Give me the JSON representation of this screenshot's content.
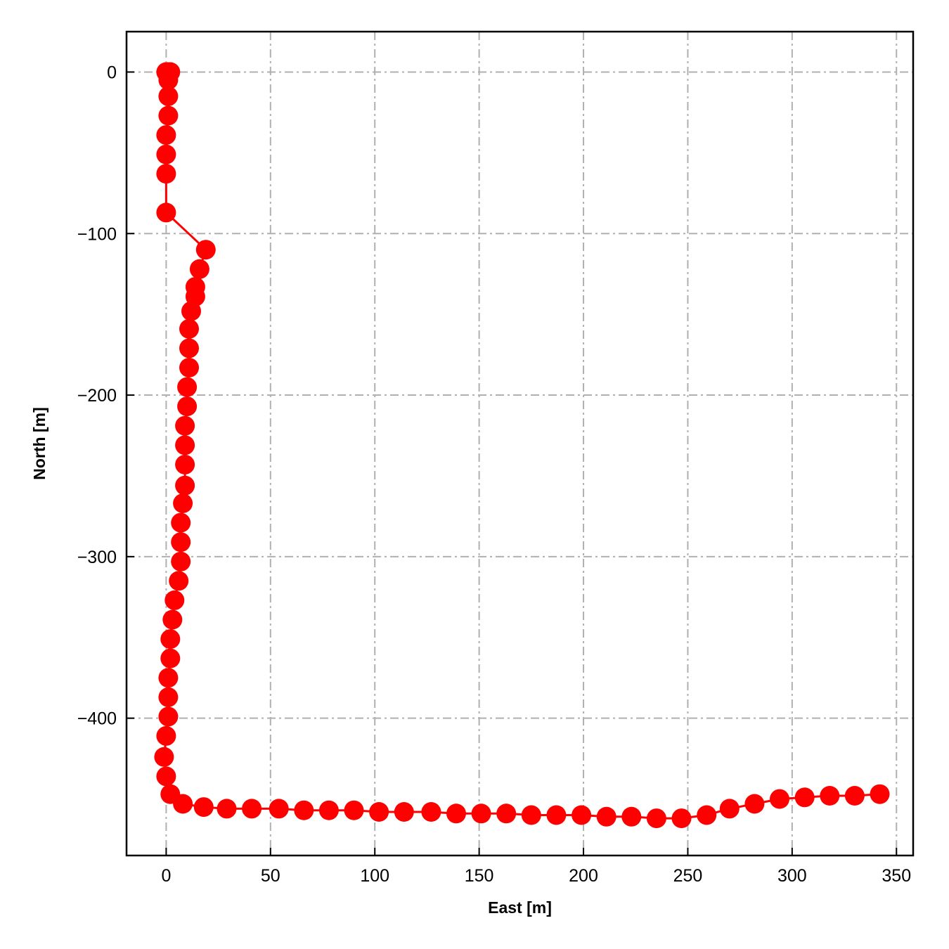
{
  "chart_data": {
    "type": "line",
    "title": "",
    "xlabel": "East [m]",
    "ylabel": "North [m]",
    "xlim": [
      -19,
      358
    ],
    "ylim": [
      -485,
      25
    ],
    "xticks": [
      0,
      50,
      100,
      150,
      200,
      250,
      300,
      350
    ],
    "yticks": [
      0,
      -100,
      -200,
      -300,
      -400
    ],
    "xtick_labels": [
      "0",
      "50",
      "100",
      "150",
      "200",
      "250",
      "300",
      "350"
    ],
    "ytick_labels": [
      "0",
      "−100",
      "−200",
      "−300",
      "−400"
    ],
    "grid": true,
    "legend": "none",
    "series": [
      {
        "color": "#ff0000",
        "marker": "circle",
        "points": [
          [
            0,
            0
          ],
          [
            1,
            0
          ],
          [
            2,
            0
          ],
          [
            1,
            -5
          ],
          [
            1,
            -15
          ],
          [
            1,
            -27
          ],
          [
            0,
            -39
          ],
          [
            0,
            -51
          ],
          [
            0,
            -63
          ],
          [
            0,
            -87
          ],
          [
            19,
            -110
          ],
          [
            16,
            -122
          ],
          [
            14,
            -133
          ],
          [
            14,
            -139
          ],
          [
            12,
            -148
          ],
          [
            11,
            -159
          ],
          [
            11,
            -171
          ],
          [
            11,
            -183
          ],
          [
            10,
            -195
          ],
          [
            10,
            -207
          ],
          [
            9,
            -219
          ],
          [
            9,
            -231
          ],
          [
            9,
            -243
          ],
          [
            9,
            -256
          ],
          [
            8,
            -267
          ],
          [
            7,
            -279
          ],
          [
            7,
            -291
          ],
          [
            7,
            -303
          ],
          [
            6,
            -315
          ],
          [
            4,
            -327
          ],
          [
            3,
            -339
          ],
          [
            2,
            -351
          ],
          [
            2,
            -363
          ],
          [
            1,
            -375
          ],
          [
            1,
            -387
          ],
          [
            1,
            -399
          ],
          [
            0,
            -411
          ],
          [
            -1,
            -424
          ],
          [
            0,
            -436
          ],
          [
            2,
            -447
          ],
          [
            8,
            -453
          ],
          [
            18,
            -455
          ],
          [
            29,
            -456
          ],
          [
            41,
            -456
          ],
          [
            54,
            -456
          ],
          [
            66,
            -457
          ],
          [
            78,
            -457
          ],
          [
            90,
            -457
          ],
          [
            102,
            -458
          ],
          [
            114,
            -458
          ],
          [
            127,
            -458
          ],
          [
            139,
            -459
          ],
          [
            151,
            -459
          ],
          [
            163,
            -459
          ],
          [
            175,
            -460
          ],
          [
            187,
            -460
          ],
          [
            199,
            -460
          ],
          [
            211,
            -461
          ],
          [
            223,
            -461
          ],
          [
            235,
            -462
          ],
          [
            247,
            -462
          ],
          [
            259,
            -460
          ],
          [
            270,
            -456
          ],
          [
            282,
            -453
          ],
          [
            294,
            -450
          ],
          [
            306,
            -449
          ],
          [
            318,
            -448
          ],
          [
            330,
            -448
          ],
          [
            342,
            -447
          ]
        ]
      }
    ]
  }
}
